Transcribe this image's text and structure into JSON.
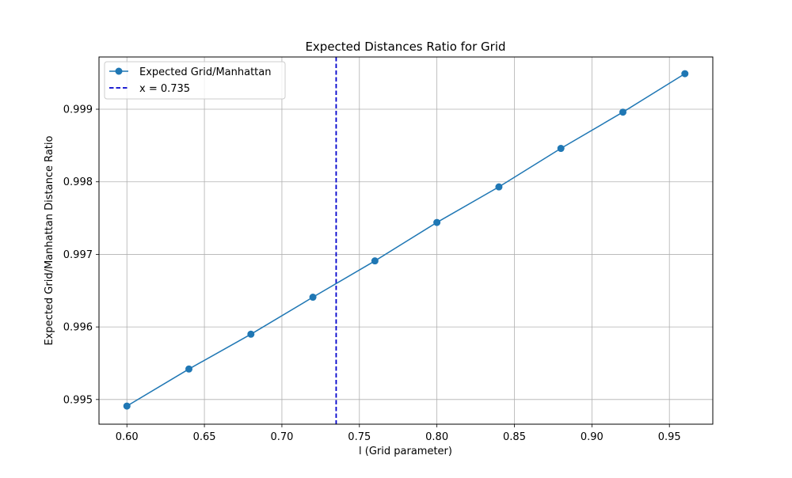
{
  "chart_data": {
    "type": "line",
    "title": "Expected Distances Ratio for Grid",
    "xlabel": "l (Grid parameter)",
    "ylabel": "Expected Grid/Manhattan Distance Ratio",
    "xlim": [
      0.582,
      0.978
    ],
    "ylim": [
      0.99466,
      0.99972
    ],
    "xticks": [
      0.6,
      0.65,
      0.7,
      0.75,
      0.8,
      0.85,
      0.9,
      0.95
    ],
    "xtick_labels": [
      "0.60",
      "0.65",
      "0.70",
      "0.75",
      "0.80",
      "0.85",
      "0.90",
      "0.95"
    ],
    "yticks": [
      0.995,
      0.996,
      0.997,
      0.998,
      0.999
    ],
    "ytick_labels": [
      "0.995",
      "0.996",
      "0.997",
      "0.998",
      "0.999"
    ],
    "grid": true,
    "legend_position": "top-left",
    "series": [
      {
        "name": "Expected Grid/Manhattan",
        "color": "#1f77b4",
        "marker": "circle",
        "x": [
          0.6,
          0.64,
          0.68,
          0.72,
          0.76,
          0.8,
          0.84,
          0.88,
          0.92,
          0.96
        ],
        "y": [
          0.99491,
          0.99542,
          0.9959,
          0.99641,
          0.99691,
          0.99744,
          0.99793,
          0.99846,
          0.99896,
          0.99949
        ]
      }
    ],
    "vline": {
      "name": "x = 0.735",
      "x": 0.735,
      "color": "#0000cc",
      "style": "dashed"
    }
  }
}
